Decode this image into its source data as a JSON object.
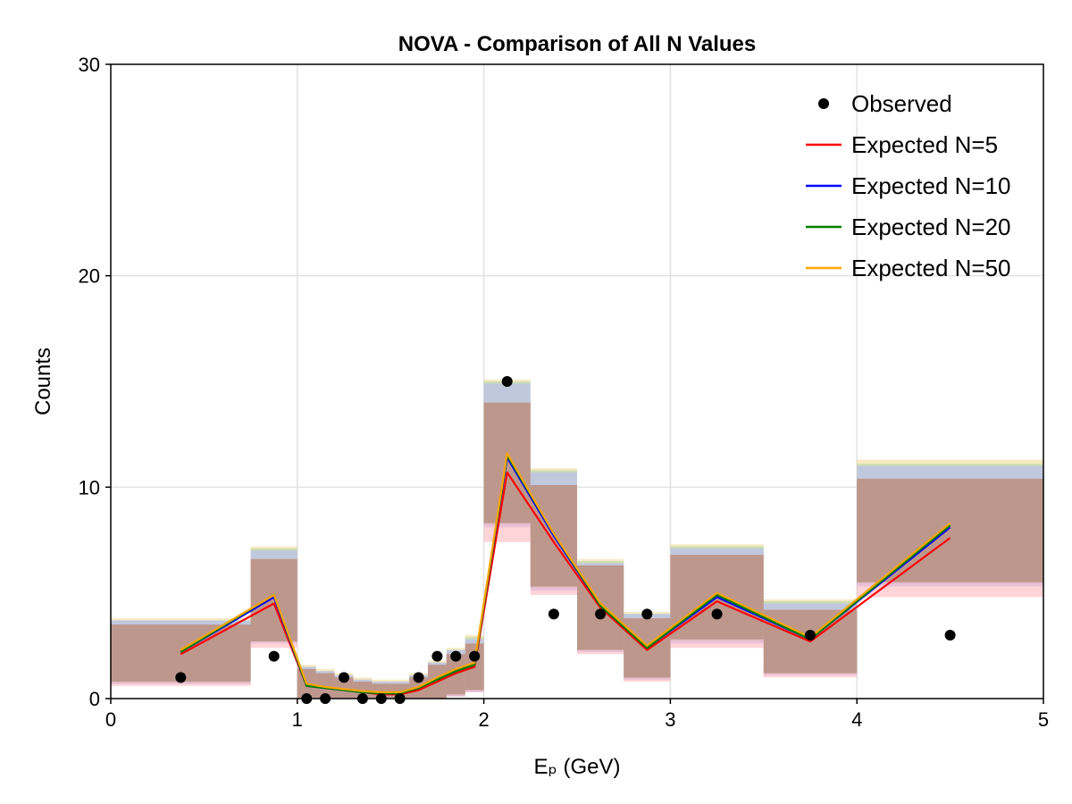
{
  "chart_data": {
    "type": "line",
    "title": "NOVA - Comparison of All N Values",
    "xlabel": "Eₚ (GeV)",
    "ylabel": "Counts",
    "xlim": [
      0,
      5
    ],
    "ylim": [
      0,
      30
    ],
    "xticks": [
      0,
      1,
      2,
      3,
      4,
      5
    ],
    "yticks": [
      0,
      10,
      20,
      30
    ],
    "xtick_labels": [
      "0",
      "1",
      "2",
      "3",
      "4",
      "5"
    ],
    "ytick_labels": [
      "0",
      "10",
      "20",
      "30"
    ],
    "grid": true,
    "legend_position": "top-right",
    "bins": [
      [
        0.0,
        0.75
      ],
      [
        0.75,
        1.0
      ],
      [
        1.0,
        1.1
      ],
      [
        1.1,
        1.2
      ],
      [
        1.2,
        1.3
      ],
      [
        1.3,
        1.4
      ],
      [
        1.4,
        1.5
      ],
      [
        1.5,
        1.6
      ],
      [
        1.6,
        1.7
      ],
      [
        1.7,
        1.8
      ],
      [
        1.8,
        1.9
      ],
      [
        1.9,
        2.0
      ],
      [
        2.0,
        2.25
      ],
      [
        2.25,
        2.5
      ],
      [
        2.5,
        2.75
      ],
      [
        2.75,
        3.0
      ],
      [
        3.0,
        3.5
      ],
      [
        3.5,
        4.0
      ],
      [
        4.0,
        5.0
      ]
    ],
    "x": [
      0.375,
      0.875,
      1.05,
      1.15,
      1.25,
      1.35,
      1.45,
      1.55,
      1.65,
      1.75,
      1.85,
      1.95,
      2.125,
      2.375,
      2.625,
      2.875,
      3.25,
      3.75,
      4.5
    ],
    "observed": {
      "name": "Observed",
      "color": "#000000",
      "x": [
        0.375,
        0.875,
        1.05,
        1.15,
        1.25,
        1.35,
        1.45,
        1.55,
        1.65,
        1.75,
        1.85,
        1.95,
        2.125,
        2.375,
        2.625,
        2.875,
        3.25,
        3.75,
        4.5
      ],
      "values": [
        1,
        2,
        0,
        0,
        1,
        0,
        0,
        0,
        1,
        2,
        2,
        2,
        15,
        4,
        4,
        4,
        4,
        3,
        3
      ]
    },
    "series": [
      {
        "name": "Expected N=5",
        "color": "#ff0000",
        "band_color": "#ffb0b8",
        "values": [
          2.1,
          4.5,
          0.6,
          0.5,
          0.4,
          0.3,
          0.2,
          0.2,
          0.4,
          0.8,
          1.2,
          1.5,
          10.7,
          7.4,
          4.3,
          2.3,
          4.6,
          2.7,
          7.6
        ],
        "band_lower": [
          0.6,
          2.4,
          0.0,
          0.0,
          0.0,
          0.0,
          0.0,
          0.0,
          0.0,
          0.0,
          0.1,
          0.3,
          7.4,
          4.9,
          2.1,
          0.8,
          2.4,
          1.0,
          4.8
        ],
        "band_upper": [
          3.5,
          6.6,
          1.4,
          1.2,
          1.0,
          0.8,
          0.7,
          0.7,
          1.0,
          1.6,
          2.1,
          2.6,
          14.0,
          10.1,
          6.3,
          3.8,
          6.8,
          4.2,
          10.4
        ]
      },
      {
        "name": "Expected N=10",
        "color": "#0000ff",
        "band_color": "#b8b8ff",
        "values": [
          2.2,
          4.8,
          0.6,
          0.5,
          0.4,
          0.3,
          0.25,
          0.25,
          0.5,
          0.9,
          1.3,
          1.6,
          11.4,
          7.7,
          4.4,
          2.4,
          4.8,
          2.8,
          8.1
        ],
        "band_lower": [
          0.7,
          2.6,
          0.0,
          0.0,
          0.0,
          0.0,
          0.0,
          0.0,
          0.0,
          0.0,
          0.1,
          0.3,
          8.1,
          5.1,
          2.2,
          0.9,
          2.6,
          1.1,
          5.3
        ],
        "band_upper": [
          3.7,
          7.0,
          1.5,
          1.3,
          1.1,
          0.9,
          0.8,
          0.8,
          1.1,
          1.7,
          2.3,
          2.8,
          14.9,
          10.7,
          6.4,
          4.0,
          7.1,
          4.5,
          11.0
        ]
      },
      {
        "name": "Expected N=20",
        "color": "#008000",
        "band_color": "#a8d0a8",
        "values": [
          2.2,
          4.9,
          0.6,
          0.5,
          0.4,
          0.3,
          0.25,
          0.25,
          0.5,
          0.9,
          1.3,
          1.6,
          11.5,
          7.8,
          4.4,
          2.4,
          4.9,
          2.8,
          8.2
        ],
        "band_lower": [
          0.7,
          2.7,
          0.0,
          0.0,
          0.0,
          0.0,
          0.0,
          0.0,
          0.0,
          0.0,
          0.1,
          0.4,
          8.2,
          5.2,
          2.3,
          0.9,
          2.7,
          1.2,
          5.4
        ],
        "band_upper": [
          3.7,
          7.1,
          1.5,
          1.3,
          1.1,
          0.9,
          0.8,
          0.8,
          1.1,
          1.7,
          2.3,
          2.9,
          15.0,
          10.8,
          6.5,
          4.0,
          7.2,
          4.6,
          11.1
        ]
      },
      {
        "name": "Expected N=50",
        "color": "#ffa500",
        "band_color": "#f0d890",
        "values": [
          2.3,
          4.9,
          0.7,
          0.55,
          0.45,
          0.35,
          0.3,
          0.3,
          0.55,
          1.0,
          1.4,
          1.7,
          11.6,
          7.8,
          4.5,
          2.5,
          5.0,
          2.9,
          8.3
        ],
        "band_lower": [
          0.8,
          2.7,
          0.0,
          0.0,
          0.0,
          0.0,
          0.0,
          0.0,
          0.0,
          0.0,
          0.2,
          0.4,
          8.3,
          5.3,
          2.3,
          1.0,
          2.8,
          1.2,
          5.5
        ],
        "band_upper": [
          3.8,
          7.2,
          1.6,
          1.4,
          1.2,
          1.0,
          0.9,
          0.9,
          1.2,
          1.8,
          2.4,
          3.0,
          15.1,
          10.9,
          6.6,
          4.1,
          7.3,
          4.7,
          11.3
        ]
      }
    ]
  }
}
